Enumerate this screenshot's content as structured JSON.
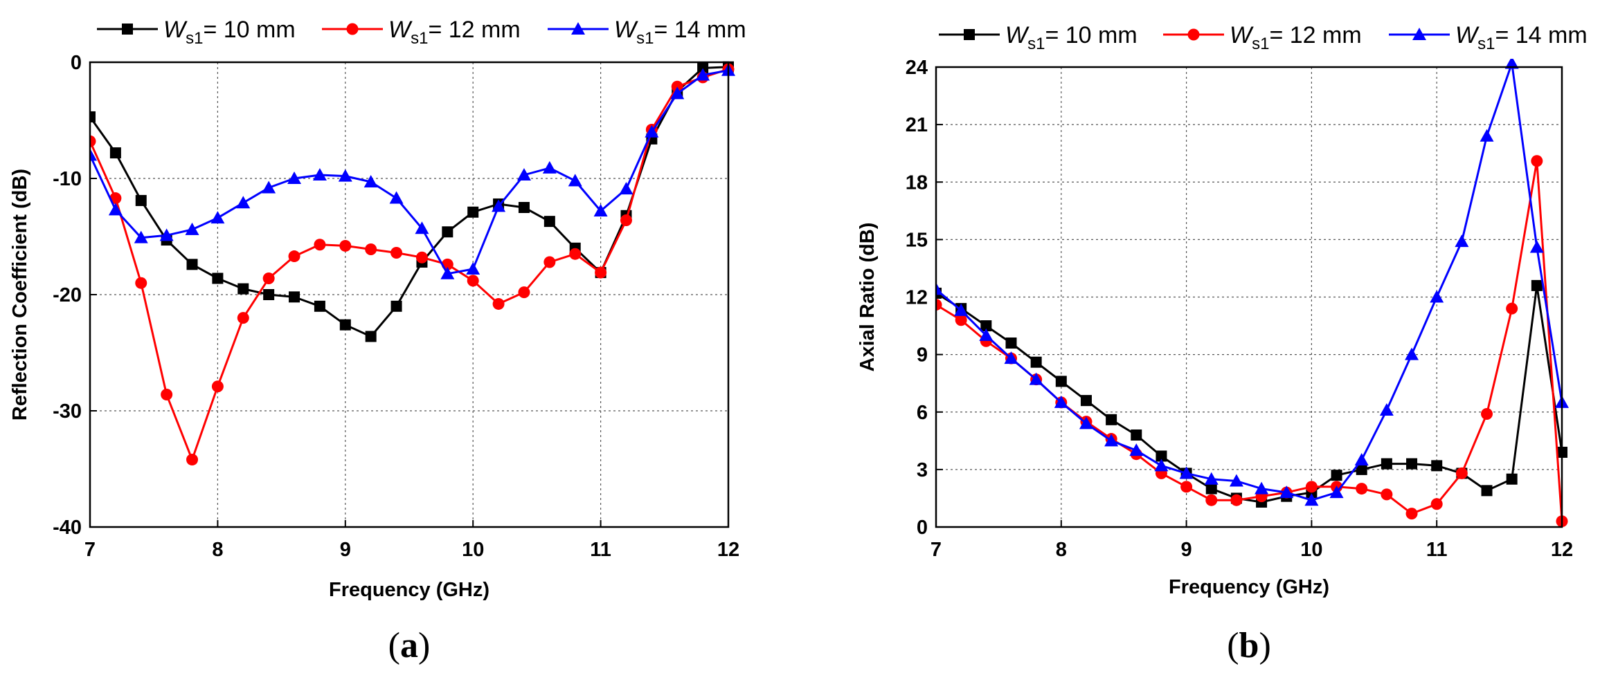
{
  "chart_data": [
    {
      "type": "line",
      "panel": "a",
      "panel_label": {
        "open": "(",
        "letter": "a",
        "close": ")"
      },
      "xlabel": "Frequency (GHz)",
      "ylabel": "Reflection Coefficient (dB)",
      "xlim": [
        7,
        12
      ],
      "ylim": [
        -40,
        0
      ],
      "xticks": [
        7,
        8,
        9,
        10,
        11,
        12
      ],
      "yticks": [
        -40,
        -30,
        -20,
        -10,
        0
      ],
      "grid": true,
      "legend_position": "top",
      "series": [
        {
          "name": "Ws1= 10 mm",
          "label": {
            "var": "W",
            "sub": "s1",
            "text": "= 10 mm"
          },
          "color": "#000000",
          "marker": "square",
          "x": [
            7.0,
            7.2,
            7.4,
            7.6,
            7.8,
            8.0,
            8.2,
            8.4,
            8.6,
            8.8,
            9.0,
            9.2,
            9.4,
            9.6,
            9.8,
            10.0,
            10.2,
            10.4,
            10.6,
            10.8,
            11.0,
            11.2,
            11.4,
            11.6,
            11.8,
            12.0
          ],
          "y": [
            -4.7,
            -7.8,
            -11.9,
            -15.3,
            -17.4,
            -18.6,
            -19.5,
            -20.0,
            -20.2,
            -21.0,
            -22.6,
            -23.6,
            -21.0,
            -17.2,
            -14.6,
            -12.9,
            -12.2,
            -12.5,
            -13.7,
            -16.0,
            -18.1,
            -13.2,
            -6.6,
            -2.5,
            -0.5,
            -0.4
          ]
        },
        {
          "name": "Ws1= 12 mm",
          "label": {
            "var": "W",
            "sub": "s1",
            "text": "= 12 mm"
          },
          "color": "#ff0000",
          "marker": "circle",
          "x": [
            7.0,
            7.2,
            7.4,
            7.6,
            7.8,
            8.0,
            8.2,
            8.4,
            8.6,
            8.8,
            9.0,
            9.2,
            9.4,
            9.6,
            9.8,
            10.0,
            10.2,
            10.4,
            10.6,
            10.8,
            11.0,
            11.2,
            11.4,
            11.6,
            11.8,
            12.0
          ],
          "y": [
            -6.8,
            -11.7,
            -19.0,
            -28.6,
            -34.2,
            -27.9,
            -22.0,
            -18.6,
            -16.7,
            -15.7,
            -15.8,
            -16.1,
            -16.4,
            -16.8,
            -17.4,
            -18.8,
            -20.8,
            -19.8,
            -17.2,
            -16.5,
            -18.1,
            -13.6,
            -5.8,
            -2.1,
            -1.3,
            -0.6
          ]
        },
        {
          "name": "Ws1= 14 mm",
          "label": {
            "var": "W",
            "sub": "s1",
            "text": "= 14 mm"
          },
          "color": "#0000ff",
          "marker": "triangle",
          "x": [
            7.0,
            7.2,
            7.4,
            7.6,
            7.8,
            8.0,
            8.2,
            8.4,
            8.6,
            8.8,
            9.0,
            9.2,
            9.4,
            9.6,
            9.8,
            10.0,
            10.2,
            10.4,
            10.6,
            10.8,
            11.0,
            11.2,
            11.4,
            11.6,
            11.8,
            12.0
          ],
          "y": [
            -8.0,
            -12.7,
            -15.1,
            -14.9,
            -14.4,
            -13.4,
            -12.1,
            -10.8,
            -10.0,
            -9.7,
            -9.8,
            -10.3,
            -11.7,
            -14.3,
            -18.2,
            -17.8,
            -12.4,
            -9.7,
            -9.1,
            -10.2,
            -12.8,
            -10.9,
            -6.0,
            -2.7,
            -1.1,
            -0.7
          ]
        }
      ]
    },
    {
      "type": "line",
      "panel": "b",
      "panel_label": {
        "open": "(",
        "letter": "b",
        "close": ")"
      },
      "xlabel": "Frequency (GHz)",
      "ylabel": "Axial Ratio (dB)",
      "xlim": [
        7,
        12
      ],
      "ylim": [
        0,
        24
      ],
      "xticks": [
        7,
        8,
        9,
        10,
        11,
        12
      ],
      "yticks": [
        0,
        3,
        6,
        9,
        12,
        15,
        18,
        21,
        24
      ],
      "grid": true,
      "legend_position": "top",
      "series": [
        {
          "name": "Ws1= 10 mm",
          "label": {
            "var": "W",
            "sub": "s1",
            "text": "= 10 mm"
          },
          "color": "#000000",
          "marker": "square",
          "x": [
            7.0,
            7.2,
            7.4,
            7.6,
            7.8,
            8.0,
            8.2,
            8.4,
            8.6,
            8.8,
            9.0,
            9.2,
            9.4,
            9.6,
            9.8,
            10.0,
            10.2,
            10.4,
            10.6,
            10.8,
            11.0,
            11.2,
            11.4,
            11.6,
            11.8,
            12.0
          ],
          "y": [
            12.2,
            11.4,
            10.5,
            9.6,
            8.6,
            7.6,
            6.6,
            5.6,
            4.8,
            3.7,
            2.8,
            2.0,
            1.5,
            1.3,
            1.6,
            1.8,
            2.7,
            3.0,
            3.3,
            3.3,
            3.2,
            2.8,
            1.9,
            2.5,
            12.6,
            3.9
          ]
        },
        {
          "name": "Ws1= 12 mm",
          "label": {
            "var": "W",
            "sub": "s1",
            "text": "= 12 mm"
          },
          "color": "#ff0000",
          "marker": "circle",
          "x": [
            7.0,
            7.2,
            7.4,
            7.6,
            7.8,
            8.0,
            8.2,
            8.4,
            8.6,
            8.8,
            9.0,
            9.2,
            9.4,
            9.6,
            9.8,
            10.0,
            10.2,
            10.4,
            10.6,
            10.8,
            11.0,
            11.2,
            11.4,
            11.6,
            11.8,
            12.0
          ],
          "y": [
            11.6,
            10.8,
            9.7,
            8.8,
            7.7,
            6.5,
            5.5,
            4.6,
            3.8,
            2.8,
            2.1,
            1.4,
            1.4,
            1.6,
            1.8,
            2.1,
            2.1,
            2.0,
            1.7,
            0.7,
            1.2,
            2.8,
            5.9,
            11.4,
            19.1,
            0.3
          ]
        },
        {
          "name": "Ws1= 14 mm",
          "label": {
            "var": "W",
            "sub": "s1",
            "text": "= 14 mm"
          },
          "color": "#0000ff",
          "marker": "triangle",
          "x": [
            7.0,
            7.2,
            7.4,
            7.6,
            7.8,
            8.0,
            8.2,
            8.4,
            8.6,
            8.8,
            9.0,
            9.2,
            9.4,
            9.6,
            9.8,
            10.0,
            10.2,
            10.4,
            10.6,
            10.8,
            11.0,
            11.2,
            11.4,
            11.6,
            11.8,
            12.0
          ],
          "y": [
            12.4,
            11.3,
            10.0,
            8.8,
            7.7,
            6.5,
            5.4,
            4.5,
            4.0,
            3.2,
            2.8,
            2.5,
            2.4,
            2.0,
            1.8,
            1.4,
            1.8,
            3.5,
            6.1,
            9.0,
            12.0,
            14.9,
            20.4,
            24.2,
            14.6,
            6.5
          ]
        }
      ]
    }
  ]
}
